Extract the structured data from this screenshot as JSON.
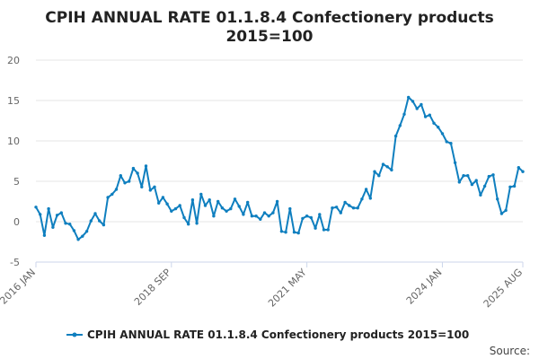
{
  "chart_data": {
    "type": "line",
    "title_line1": "CPIH ANNUAL RATE 01.1.8.4 Confectionery products",
    "title_line2": "2015=100",
    "xlabel": "",
    "ylabel": "",
    "ylim": [
      -5,
      20
    ],
    "yticks": [
      -5,
      0,
      5,
      10,
      15,
      20
    ],
    "x_tick_labels": [
      "2016 JAN",
      "2018 SEP",
      "2021 MAY",
      "2024 JAN",
      "2025 AUG"
    ],
    "x_tick_positions": [
      0,
      32,
      64,
      96,
      115
    ],
    "grid": true,
    "legend_position": "bottom",
    "source_label": "Source:",
    "colors": {
      "line": "#0f7fbf"
    },
    "series": [
      {
        "name": "CPIH ANNUAL RATE 01.1.8.4 Confectionery products 2015=100",
        "x_start": "2016-01",
        "x_end": "2025-08",
        "values": [
          1.8,
          0.9,
          -1.7,
          1.6,
          -0.7,
          0.8,
          1.1,
          -0.2,
          -0.3,
          -1.1,
          -2.2,
          -1.8,
          -1.2,
          0.1,
          1.0,
          0.1,
          -0.4,
          3.0,
          3.4,
          4.0,
          5.7,
          4.8,
          5.0,
          6.6,
          6.0,
          4.3,
          6.9,
          3.9,
          4.3,
          2.3,
          3.0,
          2.2,
          1.3,
          1.6,
          2.0,
          0.5,
          -0.3,
          2.7,
          -0.2,
          3.4,
          2.0,
          2.7,
          0.7,
          2.5,
          1.7,
          1.3,
          1.6,
          2.8,
          1.9,
          0.9,
          2.4,
          0.7,
          0.7,
          0.3,
          1.1,
          0.7,
          1.1,
          2.5,
          -1.2,
          -1.3,
          1.6,
          -1.3,
          -1.4,
          0.4,
          0.7,
          0.5,
          -0.8,
          0.9,
          -1.0,
          -1.0,
          1.7,
          1.8,
          1.1,
          2.4,
          2.0,
          1.7,
          1.7,
          2.8,
          4.0,
          2.9,
          6.2,
          5.7,
          7.1,
          6.8,
          6.4,
          10.6,
          11.9,
          13.3,
          15.4,
          14.9,
          14.0,
          14.5,
          13.0,
          13.2,
          12.2,
          11.7,
          10.9,
          9.9,
          9.7,
          7.3,
          4.9,
          5.7,
          5.7,
          4.6,
          5.1,
          3.3,
          4.4,
          5.6,
          5.8,
          2.8,
          1.0,
          1.4,
          4.3,
          4.4,
          6.7,
          6.2
        ]
      }
    ]
  }
}
